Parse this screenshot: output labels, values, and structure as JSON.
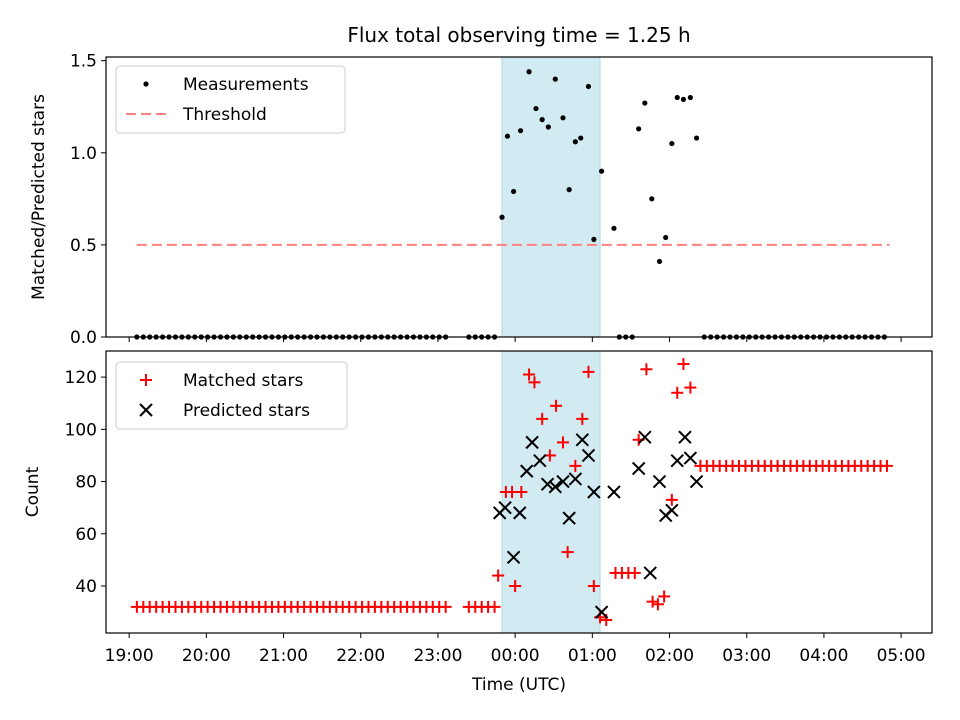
{
  "chart_data": [
    {
      "type": "scatter",
      "panel": "top",
      "title": "Flux total observing time = 1.25 h",
      "xlabel": "",
      "ylabel": "Matched/Predicted stars",
      "xlim_hours": [
        18.7,
        29.4
      ],
      "ylim": [
        0,
        1.52
      ],
      "yticks": [
        0.0,
        0.5,
        1.0,
        1.5
      ],
      "ytick_labels": [
        "0.0",
        "0.5",
        "1.0",
        "1.5"
      ],
      "legend": [
        "Measurements",
        "Threshold"
      ],
      "legend_position": "top-left",
      "highlight_span_hours": [
        23.83,
        25.1
      ],
      "highlight_color": "#add8e6",
      "threshold": {
        "value": 0.5,
        "x_range_hours": [
          19.1,
          28.85
        ],
        "color": "#ff8080"
      },
      "zero_x_ranges_hours": [
        [
          19.1,
          23.15
        ],
        [
          23.4,
          23.78
        ],
        [
          25.35,
          25.55
        ],
        [
          26.45,
          28.85
        ]
      ],
      "measurements": [
        {
          "x": 23.83,
          "y": 0.65
        },
        {
          "x": 23.9,
          "y": 1.09
        },
        {
          "x": 23.98,
          "y": 0.79
        },
        {
          "x": 24.07,
          "y": 1.12
        },
        {
          "x": 24.18,
          "y": 1.44
        },
        {
          "x": 24.27,
          "y": 1.24
        },
        {
          "x": 24.35,
          "y": 1.18
        },
        {
          "x": 24.43,
          "y": 1.14
        },
        {
          "x": 24.52,
          "y": 1.4
        },
        {
          "x": 24.62,
          "y": 1.19
        },
        {
          "x": 24.7,
          "y": 0.8
        },
        {
          "x": 24.78,
          "y": 1.06
        },
        {
          "x": 24.85,
          "y": 1.08
        },
        {
          "x": 24.95,
          "y": 1.36
        },
        {
          "x": 25.02,
          "y": 0.53
        },
        {
          "x": 25.12,
          "y": 0.9
        },
        {
          "x": 25.28,
          "y": 0.59
        },
        {
          "x": 25.6,
          "y": 1.13
        },
        {
          "x": 25.68,
          "y": 1.27
        },
        {
          "x": 25.77,
          "y": 0.75
        },
        {
          "x": 25.87,
          "y": 0.41
        },
        {
          "x": 25.95,
          "y": 0.54
        },
        {
          "x": 26.03,
          "y": 1.05
        },
        {
          "x": 26.1,
          "y": 1.3
        },
        {
          "x": 26.18,
          "y": 1.29
        },
        {
          "x": 26.27,
          "y": 1.3
        },
        {
          "x": 26.35,
          "y": 1.08
        }
      ],
      "series_colors": {
        "measurements": "#000000",
        "threshold": "#ff8080"
      }
    },
    {
      "type": "scatter",
      "panel": "bottom",
      "title": "",
      "xlabel": "Time (UTC)",
      "ylabel": "Count",
      "xlim_hours": [
        18.7,
        29.4
      ],
      "ylim": [
        22,
        130
      ],
      "yticks": [
        40,
        60,
        80,
        100,
        120
      ],
      "ytick_labels": [
        "40",
        "60",
        "80",
        "100",
        "120"
      ],
      "xticks_hours": [
        19,
        20,
        21,
        22,
        23,
        24,
        25,
        26,
        27,
        28,
        29
      ],
      "xtick_labels": [
        "19:00",
        "20:00",
        "21:00",
        "22:00",
        "23:00",
        "00:00",
        "01:00",
        "02:00",
        "03:00",
        "04:00",
        "05:00"
      ],
      "legend": [
        "Matched stars",
        "Predicted stars"
      ],
      "legend_position": "top-left",
      "highlight_span_hours": [
        23.83,
        25.1
      ],
      "baseline_runs": [
        {
          "x_range_hours": [
            19.1,
            23.15
          ],
          "y": 32
        },
        {
          "x_range_hours": [
            23.4,
            23.78
          ],
          "y": 32
        },
        {
          "x_range_hours": [
            25.3,
            25.55
          ],
          "y": 45
        },
        {
          "x_range_hours": [
            26.4,
            28.85
          ],
          "y": 86
        }
      ],
      "matched": [
        {
          "x": 23.78,
          "y": 44
        },
        {
          "x": 23.88,
          "y": 76
        },
        {
          "x": 23.96,
          "y": 76
        },
        {
          "x": 24.0,
          "y": 40
        },
        {
          "x": 24.08,
          "y": 76
        },
        {
          "x": 24.18,
          "y": 121
        },
        {
          "x": 24.25,
          "y": 118
        },
        {
          "x": 24.35,
          "y": 104
        },
        {
          "x": 24.45,
          "y": 90
        },
        {
          "x": 24.53,
          "y": 109
        },
        {
          "x": 24.62,
          "y": 95
        },
        {
          "x": 24.68,
          "y": 53
        },
        {
          "x": 24.78,
          "y": 86
        },
        {
          "x": 24.87,
          "y": 104
        },
        {
          "x": 24.95,
          "y": 122
        },
        {
          "x": 25.02,
          "y": 40
        },
        {
          "x": 25.1,
          "y": 28
        },
        {
          "x": 25.18,
          "y": 27
        },
        {
          "x": 25.6,
          "y": 96
        },
        {
          "x": 25.7,
          "y": 123
        },
        {
          "x": 25.78,
          "y": 34
        },
        {
          "x": 25.85,
          "y": 33
        },
        {
          "x": 25.93,
          "y": 36
        },
        {
          "x": 26.03,
          "y": 73
        },
        {
          "x": 26.1,
          "y": 114
        },
        {
          "x": 26.18,
          "y": 125
        },
        {
          "x": 26.27,
          "y": 116
        }
      ],
      "predicted": [
        {
          "x": 23.8,
          "y": 68
        },
        {
          "x": 23.87,
          "y": 70
        },
        {
          "x": 23.98,
          "y": 51
        },
        {
          "x": 24.06,
          "y": 68
        },
        {
          "x": 24.15,
          "y": 84
        },
        {
          "x": 24.22,
          "y": 95
        },
        {
          "x": 24.32,
          "y": 88
        },
        {
          "x": 24.42,
          "y": 79
        },
        {
          "x": 24.52,
          "y": 78
        },
        {
          "x": 24.62,
          "y": 80
        },
        {
          "x": 24.7,
          "y": 66
        },
        {
          "x": 24.78,
          "y": 81
        },
        {
          "x": 24.87,
          "y": 96
        },
        {
          "x": 24.95,
          "y": 90
        },
        {
          "x": 25.02,
          "y": 76
        },
        {
          "x": 25.12,
          "y": 30
        },
        {
          "x": 25.28,
          "y": 76
        },
        {
          "x": 25.6,
          "y": 85
        },
        {
          "x": 25.68,
          "y": 97
        },
        {
          "x": 25.75,
          "y": 45
        },
        {
          "x": 25.87,
          "y": 80
        },
        {
          "x": 25.95,
          "y": 67
        },
        {
          "x": 26.03,
          "y": 69
        },
        {
          "x": 26.1,
          "y": 88
        },
        {
          "x": 26.2,
          "y": 97
        },
        {
          "x": 26.27,
          "y": 89
        },
        {
          "x": 26.35,
          "y": 80
        }
      ],
      "series_colors": {
        "matched": "#ff0000",
        "predicted": "#000000"
      }
    }
  ]
}
